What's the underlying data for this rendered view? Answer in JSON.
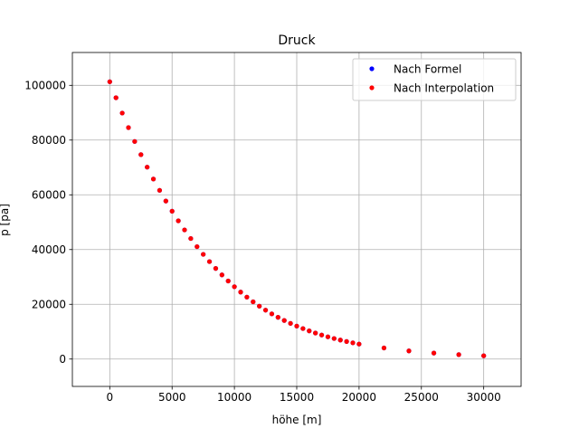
{
  "chart_data": {
    "type": "scatter",
    "title": "Druck",
    "xlabel": "höhe [m]",
    "ylabel": "p [pa]",
    "xlim": [
      -3000,
      33000
    ],
    "ylim": [
      -10000,
      112000
    ],
    "xticks": [
      0,
      5000,
      10000,
      15000,
      20000,
      25000,
      30000
    ],
    "yticks": [
      0,
      20000,
      40000,
      60000,
      80000,
      100000
    ],
    "grid": true,
    "legend_position": "top-right",
    "series": [
      {
        "name": "Nach Formel",
        "color": "#0000ff",
        "x": [
          0,
          500,
          1000,
          1500,
          2000,
          2500,
          3000,
          3500,
          4000,
          4500,
          5000,
          5500,
          6000,
          6500,
          7000,
          7500,
          8000,
          8500,
          9000,
          9500,
          10000,
          10500,
          11000,
          11500,
          12000,
          12500,
          13000,
          13500,
          14000,
          14500,
          15000,
          15500,
          16000,
          16500,
          17000,
          17500,
          18000,
          18500,
          19000,
          19500,
          20000,
          22000,
          24000,
          26000,
          28000,
          30000
        ],
        "y": [
          101325,
          95461,
          89875,
          84556,
          79495,
          74682,
          70108,
          65764,
          61640,
          57728,
          54020,
          50507,
          47181,
          44035,
          41061,
          38251,
          35600,
          33099,
          30742,
          28524,
          26436,
          24474,
          22632,
          20916,
          19330,
          17864,
          16510,
          15258,
          14101,
          13032,
          12044,
          11131,
          10287,
          9507,
          8786,
          8120,
          7505,
          6936,
          6410,
          5924,
          5475,
          4047,
          2972,
          2188,
          1616,
          1197
        ]
      },
      {
        "name": "Nach Interpolation",
        "color": "#ff0000",
        "x": [
          0,
          500,
          1000,
          1500,
          2000,
          2500,
          3000,
          3500,
          4000,
          4500,
          5000,
          5500,
          6000,
          6500,
          7000,
          7500,
          8000,
          8500,
          9000,
          9500,
          10000,
          10500,
          11000,
          11500,
          12000,
          12500,
          13000,
          13500,
          14000,
          14500,
          15000,
          15500,
          16000,
          16500,
          17000,
          17500,
          18000,
          18500,
          19000,
          19500,
          20000,
          22000,
          24000,
          26000,
          28000,
          30000
        ],
        "y": [
          101325,
          95461,
          89875,
          84556,
          79495,
          74682,
          70108,
          65764,
          61640,
          57728,
          54020,
          50507,
          47181,
          44035,
          41061,
          38251,
          35600,
          33099,
          30742,
          28524,
          26436,
          24474,
          22632,
          20916,
          19330,
          17864,
          16510,
          15258,
          14101,
          13032,
          12044,
          11131,
          10287,
          9507,
          8786,
          8120,
          7505,
          6936,
          6410,
          5924,
          5475,
          4047,
          2972,
          2188,
          1616,
          1197
        ]
      }
    ]
  }
}
